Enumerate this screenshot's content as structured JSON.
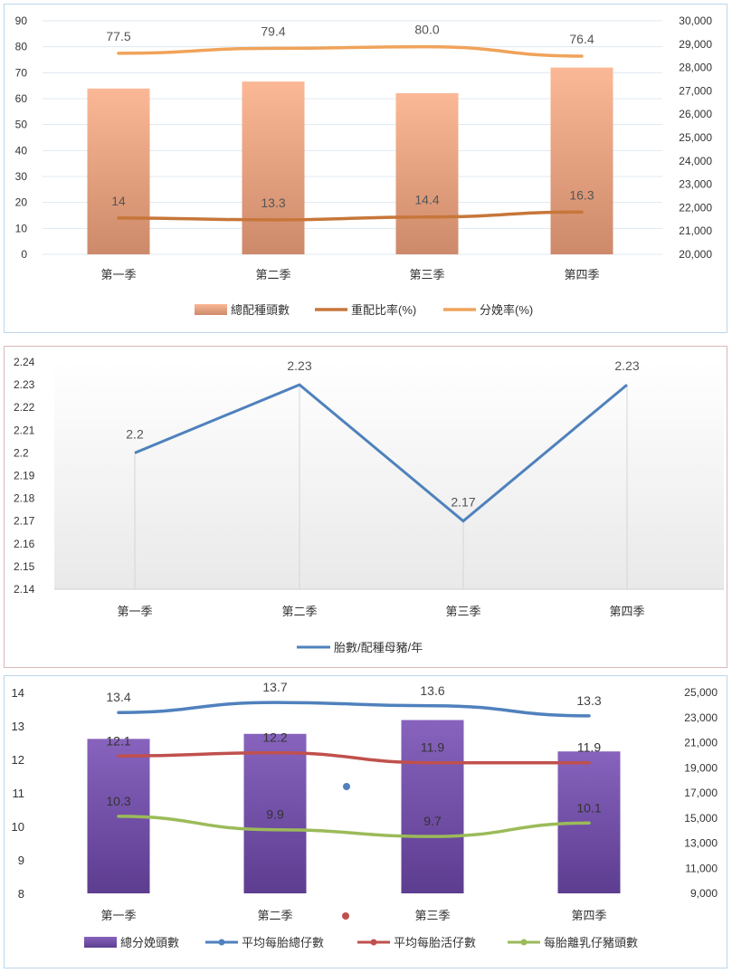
{
  "chart_data": [
    {
      "type": "bar",
      "categories": [
        "第一季",
        "第二季",
        "第三季",
        "第四季"
      ],
      "series": [
        {
          "name": "總配種頭數",
          "type": "bar",
          "axis": "right",
          "values": [
            27100,
            27400,
            26900,
            28000
          ],
          "color": "#e8a07c"
        },
        {
          "name": "重配比率(%)",
          "type": "line",
          "axis": "left",
          "values": [
            14,
            13.3,
            14.4,
            16.3
          ],
          "labels": [
            "14",
            "13.3",
            "14.4",
            "16.3"
          ],
          "color": "#c7763a"
        },
        {
          "name": "分娩率(%)",
          "type": "line",
          "axis": "left",
          "values": [
            77.5,
            79.4,
            80.0,
            76.4
          ],
          "labels": [
            "77.5",
            "79.4",
            "80.0",
            "76.4"
          ],
          "color": "#f0a35a"
        }
      ],
      "yticks_left": [
        "0",
        "10",
        "20",
        "30",
        "40",
        "50",
        "60",
        "70",
        "80",
        "90"
      ],
      "yticks_right": [
        "20,000",
        "21,000",
        "22,000",
        "23,000",
        "24,000",
        "25,000",
        "26,000",
        "27,000",
        "28,000",
        "29,000",
        "30,000"
      ],
      "ylim_left": [
        0,
        90
      ],
      "ylim_right": [
        20000,
        30000
      ],
      "grid": true,
      "legend": "bottom"
    },
    {
      "type": "line",
      "categories": [
        "第一季",
        "第二季",
        "第三季",
        "第四季"
      ],
      "series": [
        {
          "name": "胎數/配種母豬/年",
          "values": [
            2.2,
            2.23,
            2.17,
            2.23
          ],
          "labels": [
            "2.2",
            "2.23",
            "2.17",
            "2.23"
          ],
          "color": "#4f81bd"
        }
      ],
      "yticks": [
        "2.14",
        "2.15",
        "2.16",
        "2.17",
        "2.18",
        "2.19",
        "2.2",
        "2.21",
        "2.22",
        "2.23",
        "2.24"
      ],
      "ylim": [
        2.14,
        2.24
      ],
      "grid": false,
      "legend": "bottom"
    },
    {
      "type": "bar",
      "categories": [
        "第一季",
        "第二季",
        "第三季",
        "第四季"
      ],
      "series": [
        {
          "name": "總分娩頭數",
          "type": "bar",
          "axis": "right",
          "values": [
            21300,
            21700,
            22800,
            20300
          ],
          "color": "#7e57b0"
        },
        {
          "name": "平均每胎總仔數",
          "type": "line",
          "axis": "left",
          "values": [
            13.4,
            13.7,
            13.6,
            13.3
          ],
          "labels": [
            "13.4",
            "13.7",
            "13.6",
            "13.3"
          ],
          "color": "#4f81bd"
        },
        {
          "name": "平均每胎活仔數",
          "type": "line",
          "axis": "left",
          "values": [
            12.1,
            12.2,
            11.9,
            11.9
          ],
          "labels": [
            "12.1",
            "12.2",
            "11.9",
            "11.9"
          ],
          "color": "#c0504d"
        },
        {
          "name": "每胎離乳仔豬頭數",
          "type": "line",
          "axis": "left",
          "values": [
            10.3,
            9.9,
            9.7,
            10.1
          ],
          "labels": [
            "10.3",
            "9.9",
            "9.7",
            "10.1"
          ],
          "color": "#9bbb59"
        }
      ],
      "yticks_left": [
        "8",
        "9",
        "10",
        "11",
        "12",
        "13",
        "14"
      ],
      "yticks_right": [
        "9,000",
        "11,000",
        "13,000",
        "15,000",
        "17,000",
        "19,000",
        "21,000",
        "23,000",
        "25,000"
      ],
      "ylim_left": [
        8,
        14
      ],
      "ylim_right": [
        9000,
        25000
      ],
      "grid": false,
      "legend": "bottom"
    }
  ]
}
